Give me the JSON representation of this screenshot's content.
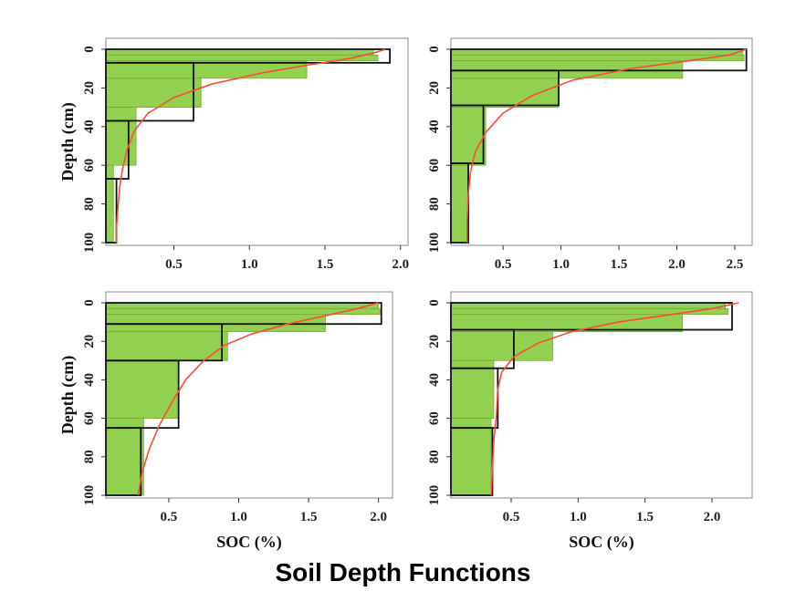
{
  "title": "Soil Depth Functions",
  "colors": {
    "bar_fill": "#92d050",
    "bar_stroke": "#7aa83d",
    "step": "#111111",
    "curve": "#ff4b3a",
    "frame": "#888888"
  },
  "chart_data": [
    {
      "type": "bar",
      "ylabel": "Depth (cm)",
      "xlabel": "",
      "xlim": [
        0.05,
        2.05
      ],
      "ylim": [
        0,
        100
      ],
      "xticks": [
        0.5,
        1.0,
        1.5,
        2.0
      ],
      "xtick_labels": [
        "0.5",
        "1.0",
        "1.5",
        "2.0"
      ],
      "yticks": [
        0,
        20,
        40,
        60,
        80,
        100
      ],
      "ytick_labels": [
        "0",
        "20",
        "40",
        "60",
        "80",
        "100"
      ],
      "bars": [
        {
          "top": 0,
          "bottom": 3,
          "value": 1.82
        },
        {
          "top": 3,
          "bottom": 6,
          "value": 1.85
        },
        {
          "top": 6,
          "bottom": 15,
          "value": 1.38
        },
        {
          "top": 15,
          "bottom": 30,
          "value": 0.68
        },
        {
          "top": 30,
          "bottom": 60,
          "value": 0.25
        },
        {
          "top": 60,
          "bottom": 100,
          "value": 0.1
        }
      ],
      "step": [
        {
          "top": 0,
          "bottom": 7,
          "value": 1.93
        },
        {
          "top": 7,
          "bottom": 37,
          "value": 0.63
        },
        {
          "top": 37,
          "bottom": 67,
          "value": 0.2
        },
        {
          "top": 67,
          "bottom": 100,
          "value": 0.12
        }
      ],
      "curve": [
        [
          1.9,
          0
        ],
        [
          1.82,
          2
        ],
        [
          1.65,
          5
        ],
        [
          1.4,
          8
        ],
        [
          1.1,
          12
        ],
        [
          0.75,
          18
        ],
        [
          0.5,
          25
        ],
        [
          0.33,
          33
        ],
        [
          0.24,
          42
        ],
        [
          0.19,
          52
        ],
        [
          0.16,
          62
        ],
        [
          0.14,
          72
        ],
        [
          0.13,
          82
        ],
        [
          0.12,
          92
        ],
        [
          0.12,
          100
        ]
      ]
    },
    {
      "type": "bar",
      "ylabel": "",
      "xlabel": "",
      "xlim": [
        0.05,
        2.65
      ],
      "ylim": [
        0,
        100
      ],
      "xticks": [
        0.5,
        1.0,
        1.5,
        2.0,
        2.5
      ],
      "xtick_labels": [
        "0.5",
        "1.0",
        "1.5",
        "2.0",
        "2.5"
      ],
      "yticks": [
        0,
        20,
        40,
        60,
        80,
        100
      ],
      "ytick_labels": [
        "0",
        "20",
        "40",
        "60",
        "80",
        "100"
      ],
      "bars": [
        {
          "top": 0,
          "bottom": 3,
          "value": 2.57
        },
        {
          "top": 3,
          "bottom": 6,
          "value": 2.58
        },
        {
          "top": 6,
          "bottom": 15,
          "value": 2.05
        },
        {
          "top": 15,
          "bottom": 30,
          "value": 0.98
        },
        {
          "top": 30,
          "bottom": 60,
          "value": 0.35
        },
        {
          "top": 60,
          "bottom": 100,
          "value": 0.2
        }
      ],
      "step": [
        {
          "top": 0,
          "bottom": 11,
          "value": 2.6
        },
        {
          "top": 11,
          "bottom": 29,
          "value": 0.98
        },
        {
          "top": 29,
          "bottom": 59,
          "value": 0.33
        },
        {
          "top": 59,
          "bottom": 100,
          "value": 0.2
        }
      ],
      "curve": [
        [
          2.6,
          0
        ],
        [
          2.45,
          3
        ],
        [
          2.1,
          6
        ],
        [
          1.6,
          10
        ],
        [
          1.1,
          16
        ],
        [
          0.75,
          24
        ],
        [
          0.5,
          33
        ],
        [
          0.35,
          43
        ],
        [
          0.26,
          53
        ],
        [
          0.22,
          63
        ],
        [
          0.2,
          75
        ],
        [
          0.19,
          88
        ],
        [
          0.19,
          100
        ]
      ]
    },
    {
      "type": "bar",
      "ylabel": "Depth (cm)",
      "xlabel": "SOC (%)",
      "xlim": [
        0.05,
        2.1
      ],
      "ylim": [
        0,
        100
      ],
      "xticks": [
        0.5,
        1.0,
        1.5,
        2.0
      ],
      "xtick_labels": [
        "0.5",
        "1.0",
        "1.5",
        "2.0"
      ],
      "yticks": [
        0,
        20,
        40,
        60,
        80,
        100
      ],
      "ytick_labels": [
        "0",
        "20",
        "40",
        "60",
        "80",
        "100"
      ],
      "bars": [
        {
          "top": 0,
          "bottom": 3,
          "value": 2.0
        },
        {
          "top": 3,
          "bottom": 6,
          "value": 2.01
        },
        {
          "top": 6,
          "bottom": 15,
          "value": 1.62
        },
        {
          "top": 15,
          "bottom": 30,
          "value": 0.92
        },
        {
          "top": 30,
          "bottom": 60,
          "value": 0.57
        },
        {
          "top": 60,
          "bottom": 100,
          "value": 0.32
        }
      ],
      "step": [
        {
          "top": 0,
          "bottom": 11,
          "value": 2.02
        },
        {
          "top": 11,
          "bottom": 30,
          "value": 0.88
        },
        {
          "top": 30,
          "bottom": 65,
          "value": 0.57
        },
        {
          "top": 65,
          "bottom": 100,
          "value": 0.3
        }
      ],
      "curve": [
        [
          2.0,
          0
        ],
        [
          1.85,
          3
        ],
        [
          1.6,
          7
        ],
        [
          1.35,
          11
        ],
        [
          1.1,
          16
        ],
        [
          0.9,
          22
        ],
        [
          0.75,
          30
        ],
        [
          0.62,
          40
        ],
        [
          0.52,
          52
        ],
        [
          0.43,
          64
        ],
        [
          0.36,
          76
        ],
        [
          0.31,
          88
        ],
        [
          0.28,
          100
        ]
      ]
    },
    {
      "type": "bar",
      "ylabel": "",
      "xlabel": "SOC (%)",
      "xlim": [
        0.05,
        2.3
      ],
      "ylim": [
        0,
        100
      ],
      "xticks": [
        0.5,
        1.0,
        1.5,
        2.0
      ],
      "xtick_labels": [
        "0.5",
        "1.0",
        "1.5",
        "2.0"
      ],
      "yticks": [
        0,
        20,
        40,
        60,
        80,
        100
      ],
      "ytick_labels": [
        "0",
        "20",
        "40",
        "60",
        "80",
        "100"
      ],
      "bars": [
        {
          "top": 0,
          "bottom": 3,
          "value": 2.1
        },
        {
          "top": 3,
          "bottom": 6,
          "value": 2.12
        },
        {
          "top": 6,
          "bottom": 15,
          "value": 1.78
        },
        {
          "top": 15,
          "bottom": 30,
          "value": 0.81
        },
        {
          "top": 30,
          "bottom": 60,
          "value": 0.37
        },
        {
          "top": 60,
          "bottom": 100,
          "value": 0.35
        }
      ],
      "step": [
        {
          "top": 0,
          "bottom": 14,
          "value": 2.15
        },
        {
          "top": 14,
          "bottom": 34,
          "value": 0.52
        },
        {
          "top": 34,
          "bottom": 65,
          "value": 0.4
        },
        {
          "top": 65,
          "bottom": 100,
          "value": 0.36
        }
      ],
      "curve": [
        [
          2.2,
          0
        ],
        [
          2.0,
          3
        ],
        [
          1.7,
          6
        ],
        [
          1.3,
          10
        ],
        [
          0.95,
          15
        ],
        [
          0.7,
          21
        ],
        [
          0.52,
          28
        ],
        [
          0.43,
          36
        ],
        [
          0.4,
          45
        ],
        [
          0.39,
          58
        ],
        [
          0.37,
          72
        ],
        [
          0.36,
          86
        ],
        [
          0.35,
          100
        ]
      ]
    }
  ]
}
